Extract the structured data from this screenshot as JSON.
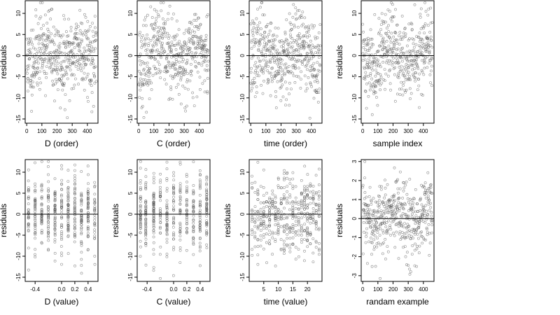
{
  "chart_data": [
    {
      "type": "scatter",
      "xlabel": "D (order)",
      "ylabel": "residuals",
      "x_ticks": [
        "0",
        "100",
        "200",
        "300",
        "400"
      ],
      "y_ticks": [
        "10",
        "5",
        "0",
        "-5",
        "-10",
        "-15"
      ],
      "xlim": [
        -10,
        470
      ],
      "ylim": [
        -16,
        13
      ],
      "x_kind": "order",
      "seed": 11
    },
    {
      "type": "scatter",
      "xlabel": "C (order)",
      "ylabel": "residuals",
      "x_ticks": [
        "0",
        "100",
        "200",
        "300",
        "400"
      ],
      "y_ticks": [
        "10",
        "5",
        "0",
        "-5",
        "-10",
        "-15"
      ],
      "xlim": [
        -10,
        470
      ],
      "ylim": [
        -16,
        13
      ],
      "x_kind": "order",
      "seed": 23
    },
    {
      "type": "scatter",
      "xlabel": "time (order)",
      "ylabel": "residuals",
      "x_ticks": [
        "0",
        "100",
        "200",
        "300",
        "400"
      ],
      "y_ticks": [
        "10",
        "5",
        "0",
        "-5",
        "-10",
        "-15"
      ],
      "xlim": [
        -10,
        470
      ],
      "ylim": [
        -16,
        13
      ],
      "x_kind": "order",
      "seed": 37
    },
    {
      "type": "scatter",
      "xlabel": "sample index",
      "ylabel": "residuals",
      "x_ticks": [
        "0",
        "100",
        "200",
        "300",
        "400"
      ],
      "y_ticks": [
        "10",
        "5",
        "0",
        "-5",
        "-10",
        "-15"
      ],
      "xlim": [
        -10,
        470
      ],
      "ylim": [
        -16,
        13
      ],
      "x_kind": "order",
      "seed": 41
    },
    {
      "type": "scatter",
      "xlabel": "D (value)",
      "ylabel": "residuals",
      "x_ticks": [
        "-0.4",
        "0.0",
        "0.2",
        "0.4"
      ],
      "x_tick_values": [
        -0.4,
        0.0,
        0.2,
        0.4
      ],
      "y_ticks": [
        "10",
        "5",
        "0",
        "-5",
        "-10",
        "-15"
      ],
      "xlim": [
        -0.55,
        0.55
      ],
      "ylim": [
        -16,
        13
      ],
      "x_kind": "levels",
      "levels": [
        -0.5,
        -0.4,
        -0.3,
        -0.2,
        -0.1,
        0.0,
        0.1,
        0.2,
        0.3,
        0.4,
        0.5
      ],
      "seed": 53
    },
    {
      "type": "scatter",
      "xlabel": "C (value)",
      "ylabel": "residuals",
      "x_ticks": [
        "-0.4",
        "0.0",
        "0.2",
        "0.4"
      ],
      "x_tick_values": [
        -0.4,
        0.0,
        0.2,
        0.4
      ],
      "y_ticks": [
        "10",
        "5",
        "0",
        "-5",
        "-10",
        "-15"
      ],
      "xlim": [
        -0.55,
        0.55
      ],
      "ylim": [
        -16,
        13
      ],
      "x_kind": "levels",
      "levels": [
        -0.5,
        -0.42,
        -0.3,
        -0.2,
        -0.1,
        0.0,
        0.1,
        0.2,
        0.3,
        0.4,
        0.5
      ],
      "seed": 67
    },
    {
      "type": "scatter",
      "xlabel": "time (value)",
      "ylabel": "residuals",
      "x_ticks": [
        "5",
        "10",
        "15",
        "20"
      ],
      "x_tick_values": [
        5,
        10,
        15,
        20
      ],
      "y_ticks": [
        "10",
        "5",
        "0",
        "-5",
        "-10",
        "-15"
      ],
      "xlim": [
        0,
        25
      ],
      "ylim": [
        -16,
        13
      ],
      "x_kind": "levels",
      "levels": [
        1,
        2,
        3,
        4,
        5,
        6,
        7,
        8,
        9,
        10,
        11,
        12,
        13,
        14,
        15,
        16,
        17,
        18,
        19,
        20,
        21,
        22,
        23,
        24
      ],
      "seed": 79
    },
    {
      "type": "scatter",
      "xlabel": "randam example",
      "ylabel": "residuals",
      "x_ticks": [
        "0",
        "100",
        "200",
        "300",
        "400"
      ],
      "y_ticks": [
        "3",
        "2",
        "1",
        "0",
        "-1",
        "-2",
        "-3"
      ],
      "xlim": [
        -10,
        470
      ],
      "ylim": [
        -3.3,
        3.1
      ],
      "x_kind": "order",
      "seed": 97
    }
  ]
}
